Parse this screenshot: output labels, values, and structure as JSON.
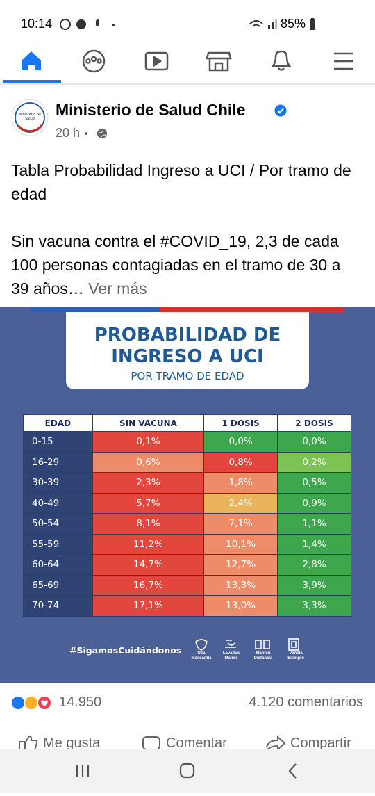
{
  "status_bar": {
    "time": "10:14",
    "battery": "85%"
  },
  "post": {
    "author": "Ministerio de Salud Chile",
    "logo_text": "Ministerio de Salud",
    "time": "20 h",
    "paragraphs": [
      "Tabla Probabilidad Ingreso a UCI / Por tramo de edad",
      "Sin vacuna contra el #COVID_19, 2,3 de cada 100 personas contagiadas en el tramo de 30 a 39 años…"
    ],
    "see_more": "Ver más"
  },
  "infographic": {
    "title_lines": [
      "PROBABILIDAD DE",
      "INGRESO A UCI"
    ],
    "subtitle": "POR TRAMO DE EDAD",
    "table": {
      "header": [
        "EDAD",
        "SIN VACUNA",
        "1 DOSIS",
        "2 DOSIS"
      ],
      "rows": [
        [
          "0-15",
          "0,1%",
          "0,0%",
          "0,0%"
        ],
        [
          "16-29",
          "0,6%",
          "0,8%",
          "0,2%"
        ],
        [
          "30-39",
          "2,3%",
          "1,8%",
          "0,5%"
        ],
        [
          "40-49",
          "5,7%",
          "2,4%",
          "0,9%"
        ],
        [
          "50-54",
          "8,1%",
          "7,1%",
          "1,1%"
        ],
        [
          "55-59",
          "11,2%",
          "10,1%",
          "1,4%"
        ],
        [
          "60-64",
          "14,7%",
          "12,7%",
          "2,8%"
        ],
        [
          "65-69",
          "16,7%",
          "13,3%",
          "3,9%"
        ],
        [
          "70-74",
          "17,1%",
          "13,0%",
          "3,3%"
        ]
      ],
      "cell_colors": [
        [
          "#e3463c",
          "#3ea64c",
          "#3ea64c"
        ],
        [
          "#ee8c6a",
          "#e3463c",
          "#7cc353"
        ],
        [
          "#e3463c",
          "#ee8c6a",
          "#3ea64c"
        ],
        [
          "#e3463c",
          "#ebb35b",
          "#3ea64c"
        ],
        [
          "#e3463c",
          "#ee8c6a",
          "#3ea64c"
        ],
        [
          "#e3463c",
          "#ee8c6a",
          "#3ea64c"
        ],
        [
          "#e3463c",
          "#ee8c6a",
          "#3ea64c"
        ],
        [
          "#e3463c",
          "#ee8c6a",
          "#3ea64c"
        ],
        [
          "#e3463c",
          "#ee8c6a",
          "#3ea64c"
        ]
      ]
    },
    "hashtag": "#SigamosCuidándonos",
    "tips": [
      "Usa Mascarilla",
      "Lava tus Manos",
      "Mantén Distancia",
      "Ventila Siempre"
    ]
  },
  "reactions": {
    "count": "14.950",
    "comments": "4.120 comentarios"
  },
  "actions": [
    "Me gusta",
    "Comentar",
    "Compartir"
  ]
}
